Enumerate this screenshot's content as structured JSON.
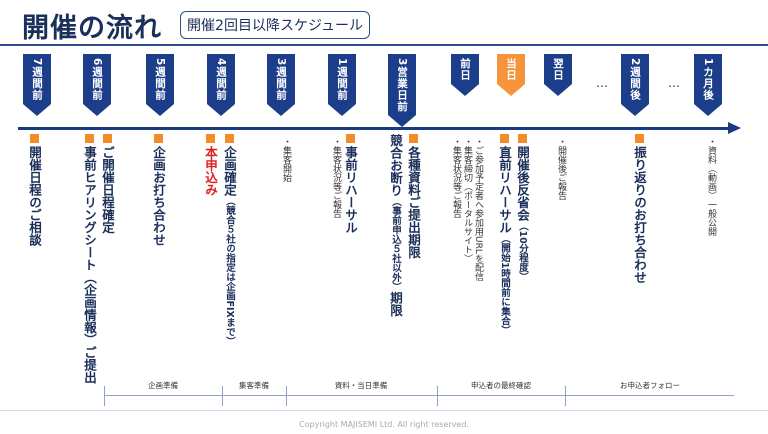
{
  "title": "開催の流れ",
  "subtitle": "開催2回目以降スケジュール",
  "milestones": [
    {
      "label": "7週間前",
      "highlight": false
    },
    {
      "label": "6週間前",
      "highlight": false
    },
    {
      "label": "5週間前",
      "highlight": false
    },
    {
      "label": "4週間前",
      "highlight": false
    },
    {
      "label": "3週間前",
      "highlight": false
    },
    {
      "label": "1週間前",
      "highlight": false
    },
    {
      "label": "3営業日前",
      "highlight": false
    },
    {
      "label": "前日",
      "highlight": false
    },
    {
      "label": "当日",
      "highlight": true
    },
    {
      "label": "翌日",
      "highlight": false
    },
    {
      "label": "2週間後",
      "highlight": false
    },
    {
      "label": "1カ月後",
      "highlight": false
    }
  ],
  "ellipsis": "…",
  "events": {
    "e1": "開催日程のご相談",
    "e2a": "事前ヒアリングシート（企画情報）ご提出",
    "e2b": "ご開催日程確定",
    "e3": "企画お打ち合わせ",
    "e4a": "本申込み",
    "e4b": "企画確定",
    "e4b_note": "（競合５社の指定は企画FIXまで）",
    "e6": "事前リハーサル",
    "e7a": "各種資料ご提出期限",
    "e7b": "競合お断り",
    "e7b_note": "（事前申込５社以外）",
    "e7b_tail": "期限",
    "e9a": "開催後反省会",
    "e9a_note": "（10分程度）",
    "e9b": "直前リハーサル",
    "e9b_note": "（開始1時間前に集合）",
    "e11": "振り返りのお打ち合わせ"
  },
  "notes": {
    "n5": "・集客開始",
    "n6": "・集客状況等ご報告",
    "n8a": "・ご参加予定者へ参加用URLを配信",
    "n8b": "・集客締切（ポータルサイト）",
    "n8c": "・集客状況等ご報告",
    "n10": "・開催後ご報告",
    "n12": "・資料（動画）一般公開"
  },
  "phases": [
    "企画準備",
    "集客準備",
    "資料・当日準備",
    "申込者の最終確認",
    "お申込者フォロー"
  ],
  "copyright": "Copyright MAJISEMI Ltd. All right reserved.",
  "colors": {
    "navy": "#1c3e8a",
    "orange": "#f5943a",
    "red": "#e02020"
  }
}
